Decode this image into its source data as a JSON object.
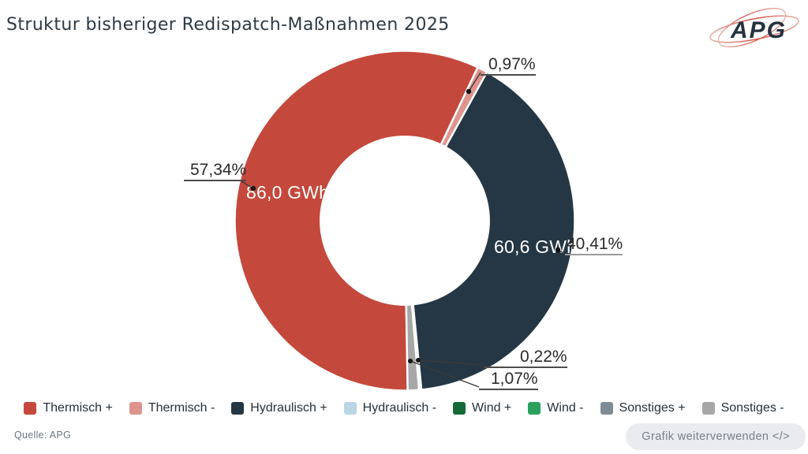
{
  "header": {
    "logo_text": "APG"
  },
  "chart_data": {
    "type": "pie",
    "donut": true,
    "title": "Struktur bisheriger Redispatch-Maßnahmen 2025",
    "unit": "GWh",
    "start_angle_deg": 179,
    "inner_radius_ratio": 0.495,
    "legend_position": "bottom",
    "segments": [
      {
        "label": "Thermisch +",
        "pct": 57.34,
        "pct_label": "57,34%",
        "value_label": "86,0 GWh",
        "color": "#c5483c"
      },
      {
        "label": "Thermisch -",
        "pct": 0.97,
        "pct_label": "0,97%",
        "value_label": "",
        "color": "#de948d"
      },
      {
        "label": "Hydraulisch +",
        "pct": 40.41,
        "pct_label": "40,41%",
        "value_label": "60,6 GWh",
        "color": "#253745"
      },
      {
        "label": "Hydraulisch -",
        "pct": 0.22,
        "pct_label": "0,22%",
        "value_label": "",
        "color": "#bad5e4"
      },
      {
        "label": "Wind +",
        "pct": 0,
        "pct_label": "",
        "value_label": "",
        "color": "#156937"
      },
      {
        "label": "Wind -",
        "pct": 0,
        "pct_label": "",
        "value_label": "",
        "color": "#2ba15d"
      },
      {
        "label": "Sonstiges +",
        "pct": 0,
        "pct_label": "",
        "value_label": "",
        "color": "#7e8b95"
      },
      {
        "label": "Sonstiges -",
        "pct": 1.07,
        "pct_label": "1,07%",
        "value_label": "",
        "color": "#a7a7a7"
      }
    ]
  },
  "footer": {
    "source": "Quelle: APG",
    "reuse_button": "Grafik weiterverwenden </>"
  }
}
